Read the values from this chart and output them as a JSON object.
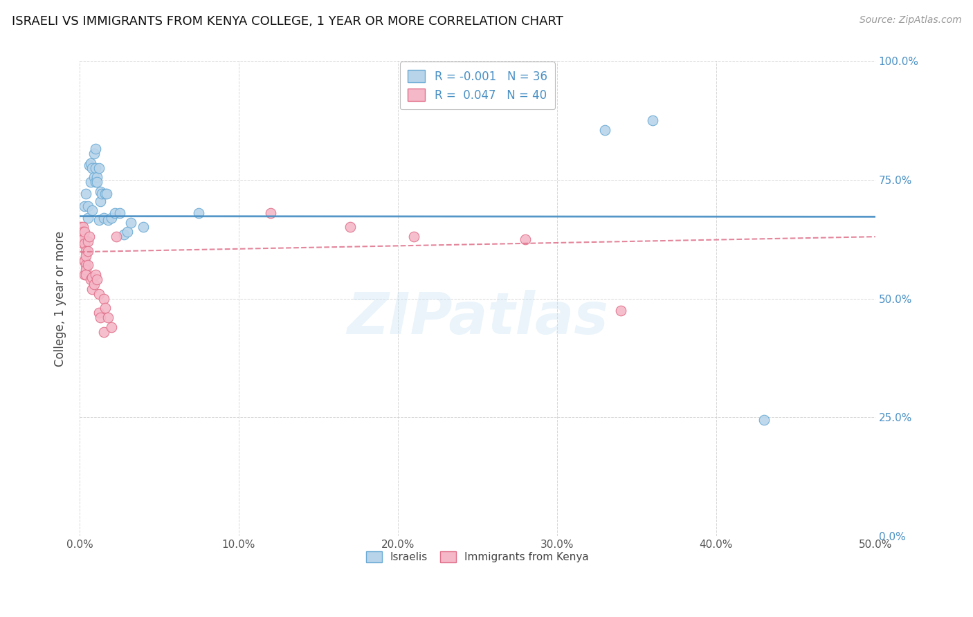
{
  "title": "ISRAELI VS IMMIGRANTS FROM KENYA COLLEGE, 1 YEAR OR MORE CORRELATION CHART",
  "source": "Source: ZipAtlas.com",
  "ylabel_label": "College, 1 year or more",
  "xlim": [
    0.0,
    0.5
  ],
  "ylim": [
    0.0,
    1.0
  ],
  "watermark": "ZIPatlas",
  "legend_labels": [
    "Israelis",
    "Immigrants from Kenya"
  ],
  "legend_R": [
    "-0.001",
    "0.047"
  ],
  "legend_N": [
    "36",
    "40"
  ],
  "blue_color": "#b8d4ea",
  "pink_color": "#f5b8c8",
  "blue_edge_color": "#6aaad4",
  "pink_edge_color": "#e0708a",
  "blue_line_color": "#4a90c4",
  "pink_line_color": "#e07890",
  "blue_scatter": [
    [
      0.003,
      0.695
    ],
    [
      0.004,
      0.72
    ],
    [
      0.005,
      0.695
    ],
    [
      0.005,
      0.67
    ],
    [
      0.006,
      0.78
    ],
    [
      0.007,
      0.785
    ],
    [
      0.007,
      0.745
    ],
    [
      0.008,
      0.775
    ],
    [
      0.008,
      0.685
    ],
    [
      0.009,
      0.805
    ],
    [
      0.009,
      0.755
    ],
    [
      0.01,
      0.745
    ],
    [
      0.01,
      0.815
    ],
    [
      0.01,
      0.775
    ],
    [
      0.011,
      0.755
    ],
    [
      0.011,
      0.745
    ],
    [
      0.012,
      0.775
    ],
    [
      0.012,
      0.665
    ],
    [
      0.013,
      0.725
    ],
    [
      0.013,
      0.705
    ],
    [
      0.014,
      0.72
    ],
    [
      0.015,
      0.67
    ],
    [
      0.016,
      0.72
    ],
    [
      0.017,
      0.72
    ],
    [
      0.018,
      0.665
    ],
    [
      0.02,
      0.67
    ],
    [
      0.022,
      0.68
    ],
    [
      0.025,
      0.68
    ],
    [
      0.028,
      0.635
    ],
    [
      0.03,
      0.64
    ],
    [
      0.032,
      0.66
    ],
    [
      0.04,
      0.65
    ],
    [
      0.075,
      0.68
    ],
    [
      0.33,
      0.855
    ],
    [
      0.36,
      0.875
    ],
    [
      0.43,
      0.245
    ]
  ],
  "pink_scatter": [
    [
      0.001,
      0.65
    ],
    [
      0.001,
      0.63
    ],
    [
      0.002,
      0.65
    ],
    [
      0.002,
      0.615
    ],
    [
      0.002,
      0.64
    ],
    [
      0.002,
      0.625
    ],
    [
      0.003,
      0.615
    ],
    [
      0.003,
      0.58
    ],
    [
      0.003,
      0.64
    ],
    [
      0.003,
      0.58
    ],
    [
      0.003,
      0.55
    ],
    [
      0.004,
      0.6
    ],
    [
      0.004,
      0.57
    ],
    [
      0.004,
      0.56
    ],
    [
      0.004,
      0.59
    ],
    [
      0.004,
      0.55
    ],
    [
      0.005,
      0.62
    ],
    [
      0.005,
      0.6
    ],
    [
      0.005,
      0.57
    ],
    [
      0.006,
      0.63
    ],
    [
      0.007,
      0.54
    ],
    [
      0.008,
      0.52
    ],
    [
      0.008,
      0.545
    ],
    [
      0.009,
      0.53
    ],
    [
      0.01,
      0.55
    ],
    [
      0.011,
      0.54
    ],
    [
      0.012,
      0.51
    ],
    [
      0.012,
      0.47
    ],
    [
      0.013,
      0.46
    ],
    [
      0.015,
      0.43
    ],
    [
      0.015,
      0.5
    ],
    [
      0.016,
      0.48
    ],
    [
      0.018,
      0.46
    ],
    [
      0.02,
      0.44
    ],
    [
      0.023,
      0.63
    ],
    [
      0.12,
      0.68
    ],
    [
      0.17,
      0.65
    ],
    [
      0.21,
      0.63
    ],
    [
      0.28,
      0.625
    ],
    [
      0.34,
      0.475
    ]
  ],
  "blue_trend_endpoints": [
    [
      0.0,
      0.673
    ],
    [
      0.5,
      0.672
    ]
  ],
  "pink_trend_endpoints": [
    [
      0.0,
      0.598
    ],
    [
      0.5,
      0.63
    ]
  ]
}
